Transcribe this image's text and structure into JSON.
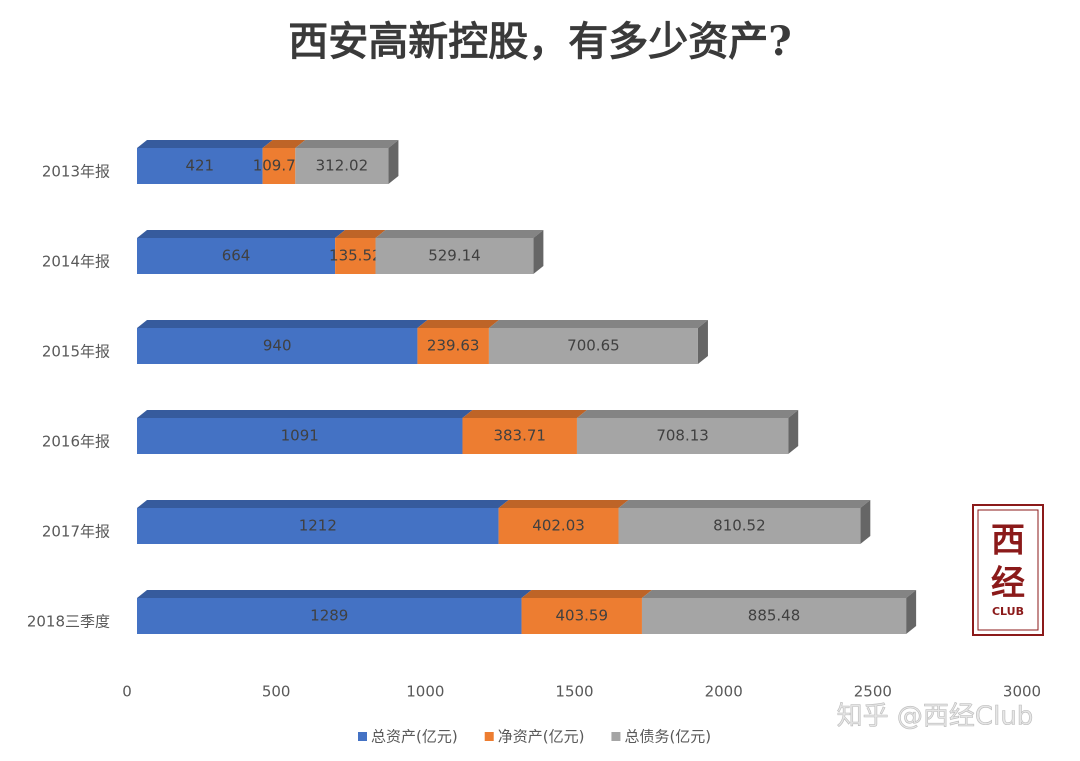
{
  "chart_data": {
    "type": "stacked-bar-3d",
    "orientation": "horizontal",
    "title": "西安高新控股，有多少资产?",
    "categories": [
      "2013年报",
      "2014年报",
      "2015年报",
      "2016年报",
      "2017年报",
      "2018三季度"
    ],
    "series": [
      {
        "name": "总资产(亿元)",
        "color": "#4472c4",
        "values": [
          421,
          664,
          940,
          1091,
          1212,
          1289
        ]
      },
      {
        "name": "净资产(亿元)",
        "color": "#ed7d31",
        "values": [
          109.75,
          135.52,
          239.63,
          383.71,
          402.03,
          403.59
        ]
      },
      {
        "name": "总债务(亿元)",
        "color": "#a5a5a5",
        "values": [
          312.02,
          529.14,
          700.65,
          708.13,
          810.52,
          885.48
        ]
      }
    ],
    "xlim": [
      0,
      3000
    ],
    "xticks": [
      0,
      500,
      1000,
      1500,
      2000,
      2500,
      3000
    ],
    "grid": false,
    "legend": "bottom"
  },
  "logo": {
    "line1": "西",
    "line2": "经",
    "line3": "CLUB"
  },
  "watermark": "知乎 @西经Club"
}
